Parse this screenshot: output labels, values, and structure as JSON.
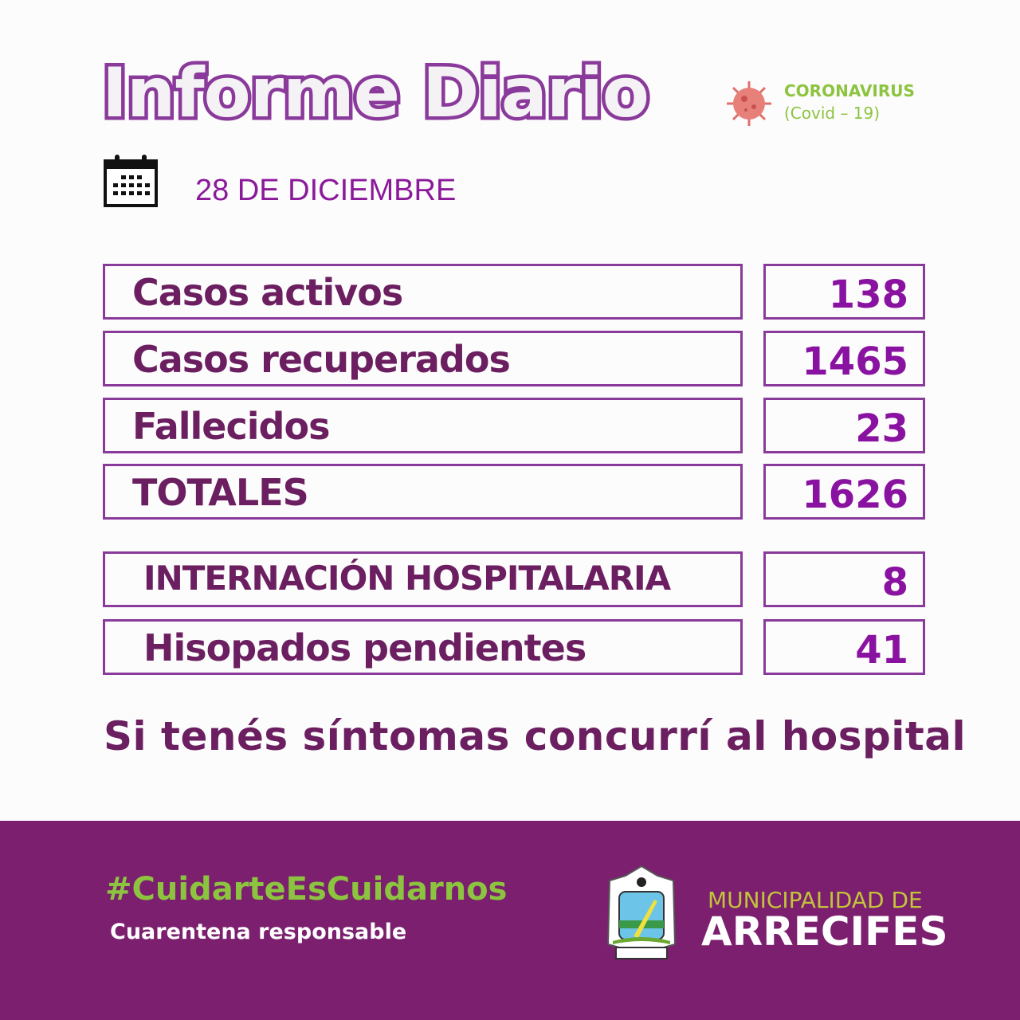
{
  "header": {
    "title": "Informe Diario",
    "date": "28 DE DICIEMBRE",
    "badge_line1": "CORONAVIRUS",
    "badge_line2": "(Covid – 19)"
  },
  "stats": [
    {
      "label": "Casos activos",
      "value": "138"
    },
    {
      "label": "Casos recuperados",
      "value": "1465"
    },
    {
      "label": "Fallecidos",
      "value": "23"
    },
    {
      "label": "TOTALES",
      "value": "1626"
    },
    {
      "label": "INTERNACIÓN HOSPITALARIA",
      "value": "8"
    },
    {
      "label": "Hisopados pendientes",
      "value": "41"
    }
  ],
  "cta": "Si tenés síntomas concurrí al hospital",
  "footer": {
    "hashtag": "#CuidarteEsCuidarnos",
    "subtitle": "Cuarentena responsable",
    "muni_line1": "MUNICIPALIDAD DE",
    "muni_line2": "ARRECIFES",
    "crest_text": "ARRECIFES"
  },
  "colors": {
    "purple": "#7b1f6e",
    "green": "#8cc43f",
    "label": "#6b1f60",
    "number": "#8a12a0"
  }
}
